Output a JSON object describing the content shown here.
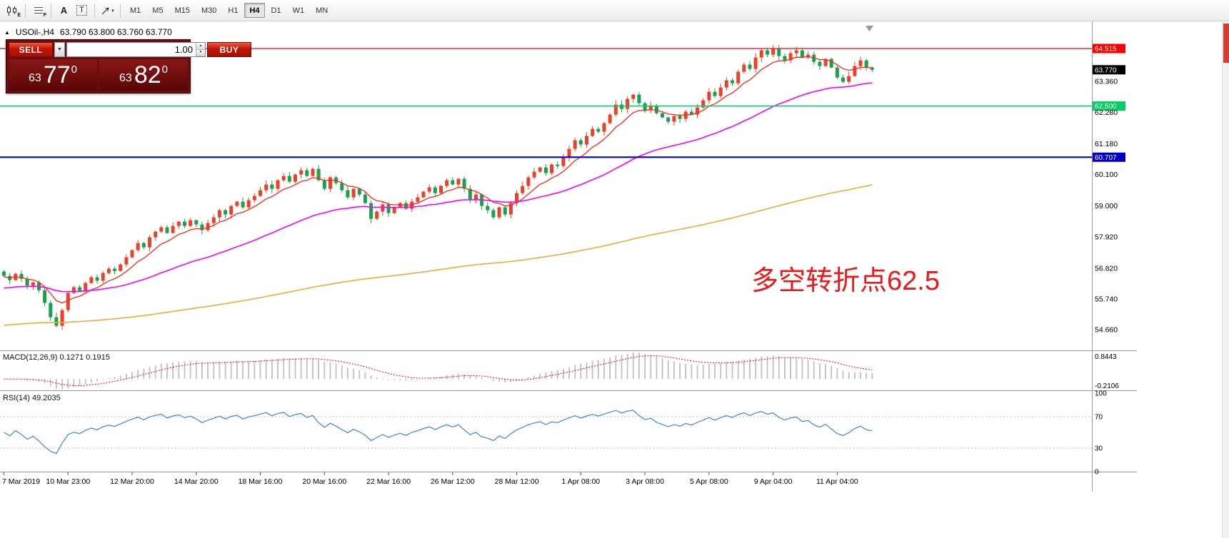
{
  "toolbar": {
    "icons": [
      {
        "name": "chart-type",
        "sub": "E"
      },
      {
        "name": "indicator-list",
        "sub": "F"
      },
      {
        "name": "text-tool",
        "label": "A"
      },
      {
        "name": "textbox-tool",
        "label": "T"
      },
      {
        "name": "cursor-tool",
        "caret": "▾"
      }
    ],
    "timeframes": [
      {
        "label": "M1",
        "active": false
      },
      {
        "label": "M5",
        "active": false
      },
      {
        "label": "M15",
        "active": false
      },
      {
        "label": "M30",
        "active": false
      },
      {
        "label": "H1",
        "active": false
      },
      {
        "label": "H4",
        "active": true
      },
      {
        "label": "D1",
        "active": false
      },
      {
        "label": "W1",
        "active": false
      },
      {
        "label": "MN",
        "active": false
      }
    ]
  },
  "chart": {
    "header": {
      "marker": "▲",
      "symbol_period": "USOil-,H4",
      "ohlc": "63.790 63.800 63.760 63.770"
    },
    "trade_panel": {
      "sell_label": "SELL",
      "buy_label": "BUY",
      "dropdown_glyph": "▼",
      "volume": "1.00",
      "spinner_up": "▲",
      "spinner_down": "▼",
      "bid": {
        "whole": "63",
        "pips": "77",
        "point": "0"
      },
      "ask": {
        "whole": "63",
        "pips": "82",
        "point": "0"
      }
    },
    "annotation": {
      "text": "多空转折点62.5",
      "color": "#ee1717"
    },
    "hlines": [
      {
        "price": 64.515,
        "color": "#ff0000",
        "width": 1.2,
        "label": "64.515",
        "text_color": "#ffffff"
      },
      {
        "price": 62.5,
        "color": "#00cd66",
        "width": 1.6,
        "label": "62.500",
        "text_color": "#ffffff"
      },
      {
        "price": 60.707,
        "color": "#0000cc",
        "width": 2.2,
        "label": "60.707",
        "text_color": "#ffffff"
      }
    ],
    "current_price": {
      "value": 63.77,
      "label": "63.770",
      "badge_color": "#000000",
      "text_color": "#ffffff"
    },
    "price_axis": {
      "labels": [
        "63.360",
        "62.280",
        "61.180",
        "60.100",
        "59.000",
        "57.920",
        "56.820",
        "55.740",
        "54.660"
      ],
      "top_price": 65.415,
      "bottom_price": 53.94
    }
  },
  "chart_data": {
    "type": "candlestick",
    "symbol": "USOil-",
    "timeframe": "H4",
    "first_open": 56.7,
    "closes": [
      56.55,
      56.4,
      56.62,
      56.45,
      56.2,
      56.32,
      56.05,
      55.6,
      55.1,
      54.8,
      55.35,
      55.95,
      56.15,
      56.02,
      56.3,
      56.5,
      56.38,
      56.65,
      56.8,
      56.72,
      56.95,
      57.2,
      57.45,
      57.7,
      57.55,
      57.9,
      58.1,
      58.25,
      58.05,
      58.3,
      58.45,
      58.3,
      58.5,
      58.35,
      58.15,
      58.4,
      58.6,
      58.85,
      58.7,
      59.0,
      59.15,
      58.95,
      59.2,
      59.35,
      59.55,
      59.75,
      59.6,
      59.9,
      60.05,
      59.85,
      60.1,
      60.25,
      60.05,
      60.3,
      59.9,
      59.6,
      60.0,
      59.8,
      59.55,
      59.3,
      59.6,
      59.4,
      59.1,
      58.55,
      58.8,
      59.05,
      58.75,
      58.95,
      59.1,
      58.9,
      59.15,
      59.3,
      59.5,
      59.65,
      59.45,
      59.7,
      59.9,
      59.75,
      59.95,
      59.6,
      59.2,
      59.4,
      59.0,
      58.85,
      58.6,
      58.95,
      58.7,
      59.1,
      59.45,
      59.7,
      60.0,
      60.2,
      60.35,
      60.15,
      60.45,
      60.4,
      60.7,
      61.0,
      61.3,
      61.15,
      61.45,
      61.7,
      61.6,
      61.9,
      62.2,
      62.55,
      62.4,
      62.75,
      62.9,
      62.6,
      62.35,
      62.5,
      62.25,
      62.1,
      61.95,
      62.15,
      62.05,
      62.3,
      62.2,
      62.45,
      62.7,
      63.0,
      62.85,
      63.15,
      63.4,
      63.3,
      63.7,
      63.95,
      63.8,
      64.2,
      64.45,
      64.3,
      64.5,
      64.25,
      64.1,
      64.35,
      64.45,
      64.2,
      64.3,
      64.05,
      63.9,
      64.15,
      63.85,
      63.5,
      63.35,
      63.55,
      63.9,
      64.1,
      63.85,
      63.77
    ],
    "candle_colors": {
      "bull": "#e8432a",
      "bear": "#19a14e"
    },
    "moving_averages": [
      {
        "name": "ma-fast",
        "period": 8,
        "init": 56.5,
        "color": "#ff2715",
        "width": 1.3
      },
      {
        "name": "ma-mid",
        "period": 40,
        "init": 56.1,
        "color": "#ff00ff",
        "width": 1.6
      },
      {
        "name": "ma-slow",
        "period": 200,
        "init": 54.8,
        "color": "#f2a93b",
        "width": 1.6
      }
    ],
    "macd": {
      "label": "MACD(12,26,9) 0.1271 0.1915",
      "fast": 12,
      "slow": 26,
      "signal": 9,
      "axis_labels": [
        "0.8443",
        "-0.2106"
      ],
      "hist_color": "#c0c0c0",
      "signal_color": "#ff0000"
    },
    "rsi": {
      "label": "RSI(14) 49.2035",
      "period": 14,
      "color": "#3c87d4",
      "axis_labels": [
        "100",
        "70",
        "30",
        "0"
      ],
      "levels": [
        70,
        30
      ]
    },
    "time_labels": [
      {
        "text": "7 Mar 2019",
        "i": 0
      },
      {
        "text": "10 Mar 23:00",
        "i": 11
      },
      {
        "text": "12 Mar 20:00",
        "i": 22
      },
      {
        "text": "14 Mar 20:00",
        "i": 33
      },
      {
        "text": "18 Mar 16:00",
        "i": 44
      },
      {
        "text": "20 Mar 16:00",
        "i": 55
      },
      {
        "text": "22 Mar 16:00",
        "i": 66
      },
      {
        "text": "26 Mar 12:00",
        "i": 77
      },
      {
        "text": "28 Mar 12:00",
        "i": 88
      },
      {
        "text": "1 Apr 08:00",
        "i": 99
      },
      {
        "text": "3 Apr 08:00",
        "i": 110
      },
      {
        "text": "5 Apr 08:00",
        "i": 121
      },
      {
        "text": "9 Apr 04:00",
        "i": 132
      },
      {
        "text": "11 Apr 04:00",
        "i": 143
      }
    ]
  }
}
